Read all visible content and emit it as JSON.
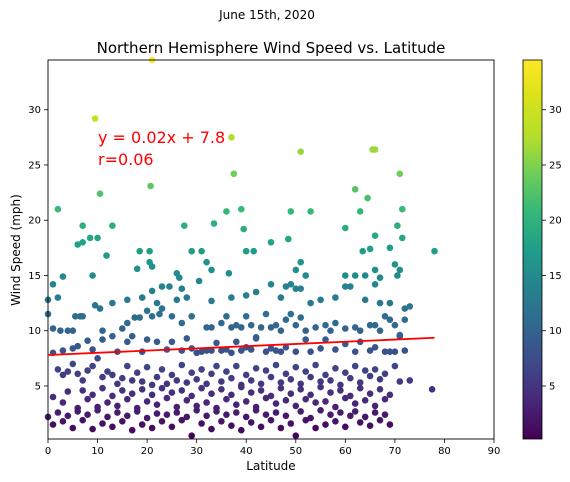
{
  "figure": {
    "suptitle": "June 15th, 2020"
  },
  "chart_data": {
    "type": "scatter",
    "title": "Northern Hemisphere Wind Speed vs. Latitude",
    "xlabel": "Latitude",
    "ylabel": "Wind Speed (mph)",
    "xlim": [
      0,
      90
    ],
    "ylim": [
      0.2,
      34.5
    ],
    "xticks": [
      "0",
      "10",
      "20",
      "30",
      "40",
      "50",
      "60",
      "70",
      "80",
      "90"
    ],
    "yticks": [
      "5",
      "10",
      "15",
      "20",
      "25",
      "30"
    ],
    "colormap": "viridis",
    "colorbar": {
      "range": [
        0.2,
        34.5
      ],
      "ticks": [
        "5",
        "10",
        "15",
        "20",
        "25",
        "30"
      ]
    },
    "regression": {
      "slope": 0.02,
      "intercept": 7.8,
      "x_range": [
        0,
        78
      ],
      "color": "#ff0000",
      "equation_label": "y = 0.02x + 7.8",
      "r_label": "r=0.06"
    },
    "grid": false,
    "points": [
      [
        21,
        34.5
      ],
      [
        9.5,
        29.2
      ],
      [
        37,
        27.5
      ],
      [
        51,
        26.2
      ],
      [
        66,
        26.4
      ],
      [
        65.5,
        26.4
      ],
      [
        37.5,
        24.2
      ],
      [
        71,
        24.2
      ],
      [
        20.7,
        23.1
      ],
      [
        10.5,
        22.4
      ],
      [
        62,
        22.8
      ],
      [
        64.5,
        22
      ],
      [
        2,
        21
      ],
      [
        39,
        21
      ],
      [
        36,
        20.8
      ],
      [
        49,
        20.8
      ],
      [
        53,
        20.8
      ],
      [
        63,
        20.8
      ],
      [
        71.5,
        21
      ],
      [
        7,
        19.5
      ],
      [
        13,
        19.5
      ],
      [
        27.5,
        19.5
      ],
      [
        33.5,
        19.7
      ],
      [
        60,
        19.3
      ],
      [
        70.5,
        19.5
      ],
      [
        6,
        17.8
      ],
      [
        8.5,
        18.4
      ],
      [
        10,
        18.4
      ],
      [
        39.5,
        19.2
      ],
      [
        11.8,
        16.8
      ],
      [
        18.5,
        17.2
      ],
      [
        20.5,
        17.2
      ],
      [
        31,
        17.2
      ],
      [
        40,
        17.2
      ],
      [
        41.5,
        17.2
      ],
      [
        45,
        18
      ],
      [
        48.5,
        18.3
      ],
      [
        63.5,
        17.2
      ],
      [
        65,
        17.4
      ],
      [
        66,
        18.6
      ],
      [
        69,
        17.5
      ],
      [
        71.5,
        18.4
      ],
      [
        78,
        17.2
      ],
      [
        7,
        18
      ],
      [
        1,
        14.2
      ],
      [
        3,
        14.9
      ],
      [
        9,
        15
      ],
      [
        18,
        15.6
      ],
      [
        20.5,
        16.2
      ],
      [
        21,
        15.8
      ],
      [
        26,
        15.2
      ],
      [
        26.5,
        14.8
      ],
      [
        29,
        17.2
      ],
      [
        32,
        16.2
      ],
      [
        33,
        15.5
      ],
      [
        36.5,
        15.2
      ],
      [
        50,
        15.5
      ],
      [
        51,
        16.2
      ],
      [
        52,
        15
      ],
      [
        60,
        15
      ],
      [
        64,
        15
      ],
      [
        66,
        15.5
      ],
      [
        67,
        14.8
      ],
      [
        70,
        16
      ],
      [
        70.5,
        15
      ],
      [
        71,
        15.5
      ],
      [
        0,
        12.8
      ],
      [
        2,
        13
      ],
      [
        9.5,
        12.3
      ],
      [
        10.5,
        12
      ],
      [
        13,
        12.5
      ],
      [
        16,
        12.8
      ],
      [
        19,
        13
      ],
      [
        21,
        13.6
      ],
      [
        22,
        12.5
      ],
      [
        23,
        14
      ],
      [
        24.5,
        14
      ],
      [
        26,
        12.8
      ],
      [
        27,
        13.8
      ],
      [
        28,
        13
      ],
      [
        30.5,
        14.5
      ],
      [
        33,
        12.7
      ],
      [
        37,
        13
      ],
      [
        40,
        13.2
      ],
      [
        42,
        13.5
      ],
      [
        45,
        14.2
      ],
      [
        47,
        13
      ],
      [
        48,
        14
      ],
      [
        49,
        14.2
      ],
      [
        50,
        13.8
      ],
      [
        51,
        13.8
      ],
      [
        53,
        12.5
      ],
      [
        55,
        12.8
      ],
      [
        58,
        13
      ],
      [
        60,
        14
      ],
      [
        61,
        14
      ],
      [
        62,
        15
      ],
      [
        64,
        12.8
      ],
      [
        66,
        14.2
      ],
      [
        67,
        12.5
      ],
      [
        69,
        12.5
      ],
      [
        72,
        12
      ],
      [
        73,
        12.2
      ],
      [
        0,
        11.5
      ],
      [
        2.5,
        10
      ],
      [
        4,
        10
      ],
      [
        5.5,
        11.3
      ],
      [
        6.5,
        11.3
      ],
      [
        7,
        11.3
      ],
      [
        11,
        10
      ],
      [
        13,
        9.5
      ],
      [
        15,
        10.2
      ],
      [
        16,
        10.7
      ],
      [
        17.5,
        11.2
      ],
      [
        18.5,
        11.2
      ],
      [
        20,
        11.8
      ],
      [
        21,
        11.3
      ],
      [
        22.5,
        11.5
      ],
      [
        23,
        12
      ],
      [
        25,
        11.3
      ],
      [
        27,
        10.7
      ],
      [
        29,
        11.3
      ],
      [
        32,
        10.3
      ],
      [
        33,
        10.3
      ],
      [
        35,
        10.7
      ],
      [
        36,
        11.3
      ],
      [
        37,
        10.3
      ],
      [
        38,
        10.5
      ],
      [
        39,
        10.3
      ],
      [
        40,
        11.3
      ],
      [
        41,
        10.5
      ],
      [
        42,
        9.3
      ],
      [
        43,
        10.3
      ],
      [
        44,
        11.5
      ],
      [
        45,
        10.3
      ],
      [
        46,
        10.5
      ],
      [
        47,
        10
      ],
      [
        48,
        11
      ],
      [
        49,
        11.5
      ],
      [
        50,
        10.5
      ],
      [
        51,
        11.2
      ],
      [
        52,
        10
      ],
      [
        54,
        10.3
      ],
      [
        56,
        10.5
      ],
      [
        57,
        10
      ],
      [
        58,
        10.7
      ],
      [
        60,
        10.2
      ],
      [
        62,
        10.3
      ],
      [
        63,
        10
      ],
      [
        65,
        10.5
      ],
      [
        66,
        10.5
      ],
      [
        67,
        10
      ],
      [
        68,
        11.3
      ],
      [
        69,
        11
      ],
      [
        70,
        10.5
      ],
      [
        71,
        9.5
      ],
      [
        72,
        11
      ],
      [
        1,
        10.2
      ],
      [
        5,
        10
      ],
      [
        1,
        8
      ],
      [
        3,
        8.2
      ],
      [
        5,
        8.4
      ],
      [
        6,
        8.6
      ],
      [
        8,
        9.1
      ],
      [
        9,
        8.3
      ],
      [
        11,
        9.2
      ],
      [
        14,
        8.1
      ],
      [
        16,
        9
      ],
      [
        17,
        9.5
      ],
      [
        19,
        8.1
      ],
      [
        20,
        9.2
      ],
      [
        22,
        9
      ],
      [
        24,
        8.3
      ],
      [
        25,
        9
      ],
      [
        27,
        8.2
      ],
      [
        28,
        9.3
      ],
      [
        29,
        8.4
      ],
      [
        30,
        8
      ],
      [
        31,
        8.1
      ],
      [
        32,
        8.2
      ],
      [
        33,
        8.2
      ],
      [
        34,
        8.9
      ],
      [
        35,
        8.2
      ],
      [
        36,
        8.3
      ],
      [
        37,
        8
      ],
      [
        38,
        9
      ],
      [
        39,
        8.2
      ],
      [
        40,
        8.5
      ],
      [
        41,
        8.3
      ],
      [
        42,
        9.4
      ],
      [
        44,
        8.1
      ],
      [
        45,
        8.4
      ],
      [
        46,
        8.2
      ],
      [
        47,
        8.1
      ],
      [
        48,
        8.5
      ],
      [
        50,
        8.1
      ],
      [
        52,
        9.2
      ],
      [
        53,
        8.1
      ],
      [
        55,
        8.4
      ],
      [
        56,
        9.2
      ],
      [
        58,
        8.3
      ],
      [
        60,
        8.8
      ],
      [
        62,
        8.1
      ],
      [
        63,
        9
      ],
      [
        65,
        8.2
      ],
      [
        66,
        8.5
      ],
      [
        68,
        8.1
      ],
      [
        69,
        8.1
      ],
      [
        70,
        8.1
      ],
      [
        71,
        9.6
      ],
      [
        72,
        8.2
      ],
      [
        73,
        5.5
      ],
      [
        2,
        6.5
      ],
      [
        3,
        6
      ],
      [
        4,
        6.3
      ],
      [
        5,
        7
      ],
      [
        6,
        6.1
      ],
      [
        7,
        5.5
      ],
      [
        8,
        6.4
      ],
      [
        9,
        6.8
      ],
      [
        10,
        7.5
      ],
      [
        11,
        5.8
      ],
      [
        12,
        6.3
      ],
      [
        13,
        6
      ],
      [
        14,
        5.2
      ],
      [
        15,
        5.7
      ],
      [
        16,
        6.8
      ],
      [
        17,
        5.5
      ],
      [
        18,
        6.2
      ],
      [
        19,
        5.4
      ],
      [
        20,
        6.7
      ],
      [
        21,
        5.1
      ],
      [
        22,
        5.8
      ],
      [
        23,
        6.5
      ],
      [
        24,
        5.2
      ],
      [
        25,
        6
      ],
      [
        26,
        5.5
      ],
      [
        27,
        6.9
      ],
      [
        28,
        5.3
      ],
      [
        29,
        6.2
      ],
      [
        30,
        5.6
      ],
      [
        31,
        6.5
      ],
      [
        32,
        5.2
      ],
      [
        33,
        6.1
      ],
      [
        34,
        6.8
      ],
      [
        35,
        5.4
      ],
      [
        36,
        6.3
      ],
      [
        37,
        5.7
      ],
      [
        38,
        6.8
      ],
      [
        39,
        5.1
      ],
      [
        40,
        6
      ],
      [
        41,
        5.5
      ],
      [
        42,
        6.6
      ],
      [
        43,
        5.2
      ],
      [
        44,
        6.4
      ],
      [
        45,
        5.8
      ],
      [
        46,
        6.9
      ],
      [
        47,
        5.3
      ],
      [
        48,
        6.1
      ],
      [
        49,
        5.6
      ],
      [
        50,
        6.7
      ],
      [
        51,
        5.2
      ],
      [
        52,
        6.3
      ],
      [
        53,
        5.8
      ],
      [
        54,
        6.9
      ],
      [
        55,
        5.4
      ],
      [
        56,
        6
      ],
      [
        57,
        5.5
      ],
      [
        58,
        6.6
      ],
      [
        59,
        5.1
      ],
      [
        60,
        6.2
      ],
      [
        61,
        5.7
      ],
      [
        62,
        6.8
      ],
      [
        63,
        5.3
      ],
      [
        64,
        6.4
      ],
      [
        65,
        5.9
      ],
      [
        66,
        6.5
      ],
      [
        67,
        5.6
      ],
      [
        68,
        6.1
      ],
      [
        70,
        6.8
      ],
      [
        71,
        5.4
      ],
      [
        1,
        4
      ],
      [
        3,
        3.5
      ],
      [
        4,
        4.5
      ],
      [
        6,
        3
      ],
      [
        7,
        4.6
      ],
      [
        8,
        3.8
      ],
      [
        9,
        4.2
      ],
      [
        10,
        3.1
      ],
      [
        11,
        4.8
      ],
      [
        12,
        3.5
      ],
      [
        13,
        4.1
      ],
      [
        14,
        3.2
      ],
      [
        15,
        4.6
      ],
      [
        16,
        3.8
      ],
      [
        17,
        4.3
      ],
      [
        18,
        3
      ],
      [
        19,
        4.7
      ],
      [
        20,
        3.6
      ],
      [
        21,
        4.2
      ],
      [
        22,
        3.3
      ],
      [
        23,
        4.8
      ],
      [
        24,
        3.9
      ],
      [
        25,
        4.4
      ],
      [
        26,
        3.1
      ],
      [
        27,
        4.6
      ],
      [
        28,
        3.7
      ],
      [
        29,
        4.1
      ],
      [
        30,
        3.2
      ],
      [
        31,
        4.8
      ],
      [
        32,
        3.5
      ],
      [
        33,
        4.3
      ],
      [
        34,
        3
      ],
      [
        35,
        4.7
      ],
      [
        36,
        3.8
      ],
      [
        37,
        4.2
      ],
      [
        38,
        3.3
      ],
      [
        39,
        4.9
      ],
      [
        40,
        3.6
      ],
      [
        41,
        4.4
      ],
      [
        42,
        3.1
      ],
      [
        43,
        4.6
      ],
      [
        44,
        3.9
      ],
      [
        45,
        4.1
      ],
      [
        46,
        3.4
      ],
      [
        47,
        4.8
      ],
      [
        48,
        3.7
      ],
      [
        49,
        4.3
      ],
      [
        50,
        3.2
      ],
      [
        51,
        4.7
      ],
      [
        52,
        3.8
      ],
      [
        53,
        4.2
      ],
      [
        54,
        3.5
      ],
      [
        55,
        4.9
      ],
      [
        56,
        3.6
      ],
      [
        57,
        4.4
      ],
      [
        58,
        3.1
      ],
      [
        59,
        4.6
      ],
      [
        60,
        3.9
      ],
      [
        61,
        4.1
      ],
      [
        62,
        3.4
      ],
      [
        63,
        4.8
      ],
      [
        64,
        3.7
      ],
      [
        65,
        4.3
      ],
      [
        66,
        3.2
      ],
      [
        67,
        4.7
      ],
      [
        68,
        3.8
      ],
      [
        69,
        4.2
      ],
      [
        77.5,
        4.7
      ],
      [
        0,
        2.2
      ],
      [
        1,
        1.5
      ],
      [
        2,
        2.6
      ],
      [
        3,
        1.8
      ],
      [
        4,
        2.3
      ],
      [
        5,
        1.2
      ],
      [
        6,
        2.7
      ],
      [
        7,
        1.9
      ],
      [
        8,
        2.4
      ],
      [
        9,
        1.1
      ],
      [
        10,
        2.8
      ],
      [
        11,
        1.6
      ],
      [
        12,
        2.2
      ],
      [
        13,
        1.3
      ],
      [
        14,
        2.6
      ],
      [
        15,
        1.8
      ],
      [
        16,
        2.3
      ],
      [
        17,
        1
      ],
      [
        18,
        2.7
      ],
      [
        19,
        1.5
      ],
      [
        20,
        2.1
      ],
      [
        21,
        1.2
      ],
      [
        22,
        2.5
      ],
      [
        23,
        1.8
      ],
      [
        24,
        2.4
      ],
      [
        25,
        1.3
      ],
      [
        26,
        2.6
      ],
      [
        27,
        1.9
      ],
      [
        28,
        2.2
      ],
      [
        29,
        0.5
      ],
      [
        30,
        2.8
      ],
      [
        31,
        1.6
      ],
      [
        32,
        2.3
      ],
      [
        33,
        1.1
      ],
      [
        34,
        2.7
      ],
      [
        35,
        1.8
      ],
      [
        36,
        2.4
      ],
      [
        37,
        1.4
      ],
      [
        38,
        2.6
      ],
      [
        39,
        1
      ],
      [
        40,
        2.2
      ],
      [
        41,
        1.7
      ],
      [
        42,
        2.8
      ],
      [
        43,
        1.3
      ],
      [
        44,
        2.4
      ],
      [
        45,
        1.9
      ],
      [
        46,
        2.6
      ],
      [
        47,
        1.2
      ],
      [
        48,
        2.3
      ],
      [
        49,
        1.6
      ],
      [
        50,
        0.5
      ],
      [
        51,
        2.7
      ],
      [
        52,
        1.9
      ],
      [
        53,
        2.1
      ],
      [
        54,
        1.2
      ],
      [
        55,
        2.8
      ],
      [
        56,
        1.5
      ],
      [
        57,
        2.4
      ],
      [
        58,
        1.8
      ],
      [
        59,
        2.6
      ],
      [
        60,
        1.3
      ],
      [
        61,
        2.3
      ],
      [
        62,
        2.7
      ],
      [
        63,
        1.7
      ],
      [
        64,
        2.2
      ],
      [
        65,
        1.4
      ],
      [
        66,
        2.6
      ],
      [
        67,
        1.9
      ],
      [
        68,
        2.4
      ],
      [
        69,
        1.5
      ]
    ]
  }
}
